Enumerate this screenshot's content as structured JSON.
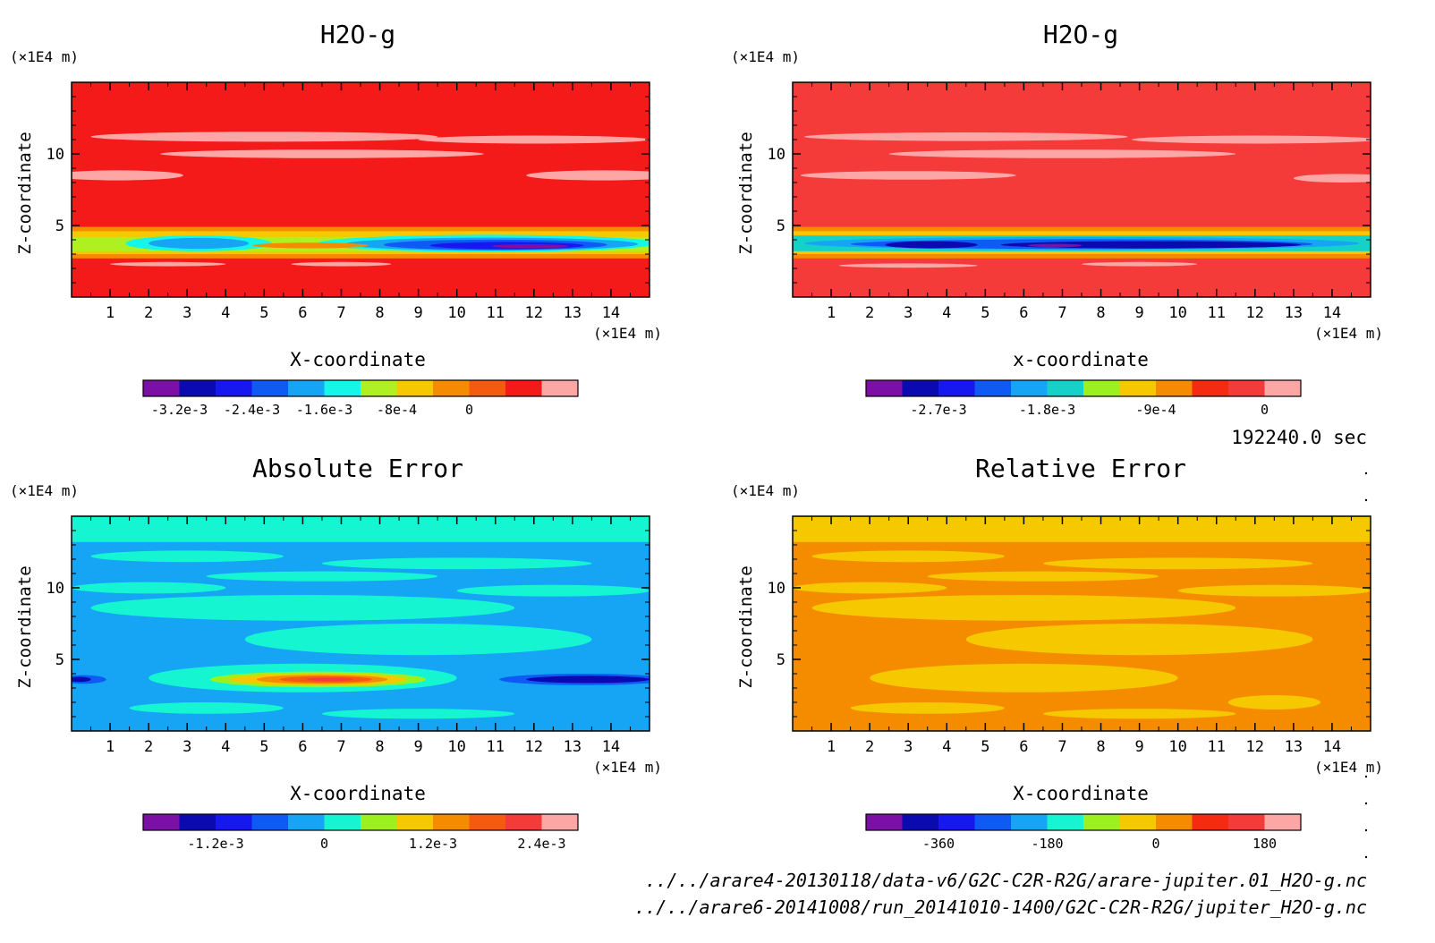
{
  "chart_data": [
    {
      "type": "heatmap",
      "title": "H2O-g",
      "xlabel": "X-coordinate",
      "ylabel": "Z-coordinate",
      "x_unit": "(×1E4 m)",
      "y_unit": "(×1E4 m)",
      "xlim": [
        0,
        15
      ],
      "ylim": [
        0,
        15
      ],
      "x_ticks": [
        "1",
        "2",
        "3",
        "4",
        "5",
        "6",
        "7",
        "8",
        "9",
        "10",
        "11",
        "12",
        "13",
        "14"
      ],
      "y_ticks": [
        "5",
        "10"
      ],
      "colorbar": {
        "colors": [
          "#7b0fa6",
          "#0a0ab0",
          "#1717f0",
          "#0f5af5",
          "#16a5f5",
          "#15f5e8",
          "#b0f020",
          "#f5c800",
          "#f58c00",
          "#f55a10",
          "#f51a1a",
          "#fda6a6"
        ],
        "tick_labels": [
          "-3.2e-3",
          "-2.4e-3",
          "-1.6e-3",
          "-8e-4",
          "0"
        ],
        "tick_positions": [
          1,
          3,
          5,
          7,
          9
        ]
      },
      "background": "#f51a1a",
      "features": [
        {
          "shape": "band",
          "z": [
            2.7,
            4.9
          ],
          "color": "#f58c00"
        },
        {
          "shape": "band",
          "z": [
            3.0,
            4.6
          ],
          "color": "#f5c800"
        },
        {
          "shape": "band",
          "z": [
            3.2,
            4.2
          ],
          "color": "#b0f020"
        },
        {
          "shape": "ellipse",
          "cx": 3.3,
          "cz": 3.75,
          "rx": 1.9,
          "rz": 0.55,
          "color": "#15f5e8"
        },
        {
          "shape": "ellipse",
          "cx": 10.8,
          "cz": 3.75,
          "rx": 4.4,
          "rz": 0.6,
          "color": "#15f5e8"
        },
        {
          "shape": "ellipse",
          "cx": 3.3,
          "cz": 3.75,
          "rx": 1.3,
          "rz": 0.38,
          "color": "#16a5f5"
        },
        {
          "shape": "ellipse",
          "cx": 10.9,
          "cz": 3.7,
          "rx": 3.8,
          "rz": 0.45,
          "color": "#16a5f5"
        },
        {
          "shape": "ellipse",
          "cx": 11.0,
          "cz": 3.65,
          "rx": 2.9,
          "rz": 0.36,
          "color": "#0f5af5"
        },
        {
          "shape": "ellipse",
          "cx": 11.3,
          "cz": 3.6,
          "rx": 2.0,
          "rz": 0.25,
          "color": "#1717f0"
        },
        {
          "shape": "ellipse",
          "cx": 11.9,
          "cz": 3.55,
          "rx": 1.0,
          "rz": 0.14,
          "color": "#7b0fa6"
        },
        {
          "shape": "ellipse",
          "cx": 6.2,
          "cz": 3.6,
          "rx": 1.5,
          "rz": 0.2,
          "color": "#f58c00"
        },
        {
          "shape": "ellipse",
          "cx": 5.0,
          "cz": 11.2,
          "rx": 4.5,
          "rz": 0.35,
          "color": "#fda6a6"
        },
        {
          "shape": "ellipse",
          "cx": 12.0,
          "cz": 11.0,
          "rx": 3.0,
          "rz": 0.28,
          "color": "#fda6a6"
        },
        {
          "shape": "ellipse",
          "cx": 6.5,
          "cz": 10.0,
          "rx": 4.2,
          "rz": 0.3,
          "color": "#fda6a6"
        },
        {
          "shape": "ellipse",
          "cx": 1.2,
          "cz": 8.5,
          "rx": 1.7,
          "rz": 0.35,
          "color": "#fda6a6"
        },
        {
          "shape": "ellipse",
          "cx": 13.8,
          "cz": 8.5,
          "rx": 2.0,
          "rz": 0.35,
          "color": "#fda6a6"
        },
        {
          "shape": "ellipse",
          "cx": 2.5,
          "cz": 2.3,
          "rx": 1.5,
          "rz": 0.15,
          "color": "#fda6a6"
        },
        {
          "shape": "ellipse",
          "cx": 7.0,
          "cz": 2.3,
          "rx": 1.3,
          "rz": 0.15,
          "color": "#fda6a6"
        }
      ]
    },
    {
      "type": "heatmap",
      "title": "H2O-g",
      "xlabel": "x-coordinate",
      "ylabel": "Z-coordinate",
      "x_unit": "(×1E4 m)",
      "y_unit": "(×1E4 m)",
      "xlim": [
        0,
        15
      ],
      "ylim": [
        0,
        15
      ],
      "x_ticks": [
        "1",
        "2",
        "3",
        "4",
        "5",
        "6",
        "7",
        "8",
        "9",
        "10",
        "11",
        "12",
        "13",
        "14"
      ],
      "y_ticks": [
        "5",
        "10"
      ],
      "colorbar": {
        "colors": [
          "#7b0fa6",
          "#0a0ab0",
          "#1717f0",
          "#0f5af5",
          "#16a5f5",
          "#15d2c8",
          "#9cf01e",
          "#f5c800",
          "#f58c00",
          "#f52a10",
          "#f53a3a",
          "#fda6a6"
        ],
        "tick_labels": [
          "-2.7e-3",
          "-1.8e-3",
          "-9e-4",
          "0"
        ],
        "tick_positions": [
          2,
          5,
          8,
          11
        ]
      },
      "background": "#f53a3a",
      "features": [
        {
          "shape": "band",
          "z": [
            2.7,
            4.9
          ],
          "color": "#f58c00"
        },
        {
          "shape": "band",
          "z": [
            3.0,
            4.6
          ],
          "color": "#f5c800"
        },
        {
          "shape": "band",
          "z": [
            3.2,
            4.3
          ],
          "color": "#15d2c8"
        },
        {
          "shape": "ellipse",
          "cx": 7.5,
          "cz": 3.75,
          "rx": 7.2,
          "rz": 0.45,
          "color": "#16a5f5"
        },
        {
          "shape": "ellipse",
          "cx": 7.5,
          "cz": 3.7,
          "rx": 6.0,
          "rz": 0.34,
          "color": "#0f5af5"
        },
        {
          "shape": "ellipse",
          "cx": 3.6,
          "cz": 3.65,
          "rx": 1.2,
          "rz": 0.25,
          "color": "#0a0ab0"
        },
        {
          "shape": "ellipse",
          "cx": 9.3,
          "cz": 3.65,
          "rx": 3.9,
          "rz": 0.25,
          "color": "#0a0ab0"
        },
        {
          "shape": "ellipse",
          "cx": 6.8,
          "cz": 3.6,
          "rx": 0.7,
          "rz": 0.12,
          "color": "#7b0fa6"
        },
        {
          "shape": "ellipse",
          "cx": 4.5,
          "cz": 11.2,
          "rx": 4.2,
          "rz": 0.3,
          "color": "#fda6a6"
        },
        {
          "shape": "ellipse",
          "cx": 12.0,
          "cz": 11.0,
          "rx": 3.2,
          "rz": 0.28,
          "color": "#fda6a6"
        },
        {
          "shape": "ellipse",
          "cx": 7.0,
          "cz": 10.0,
          "rx": 4.5,
          "rz": 0.3,
          "color": "#fda6a6"
        },
        {
          "shape": "ellipse",
          "cx": 3.0,
          "cz": 8.5,
          "rx": 2.8,
          "rz": 0.3,
          "color": "#fda6a6"
        },
        {
          "shape": "ellipse",
          "cx": 14.3,
          "cz": 8.3,
          "rx": 1.3,
          "rz": 0.3,
          "color": "#fda6a6"
        },
        {
          "shape": "ellipse",
          "cx": 3.0,
          "cz": 2.2,
          "rx": 1.8,
          "rz": 0.15,
          "color": "#fda6a6"
        },
        {
          "shape": "ellipse",
          "cx": 9.0,
          "cz": 2.3,
          "rx": 1.5,
          "rz": 0.15,
          "color": "#fda6a6"
        }
      ]
    },
    {
      "type": "heatmap",
      "title": "Absolute Error",
      "xlabel": "X-coordinate",
      "ylabel": "Z-coordinate",
      "x_unit": "(×1E4 m)",
      "y_unit": "(×1E4 m)",
      "xlim": [
        0,
        15
      ],
      "ylim": [
        0,
        15
      ],
      "x_ticks": [
        "1",
        "2",
        "3",
        "4",
        "5",
        "6",
        "7",
        "8",
        "9",
        "10",
        "11",
        "12",
        "13",
        "14"
      ],
      "y_ticks": [
        "5",
        "10"
      ],
      "colorbar": {
        "colors": [
          "#7b0fa6",
          "#0a0ab0",
          "#1717f0",
          "#0f5af5",
          "#16a5f5",
          "#15f5d2",
          "#9cf01e",
          "#f5c800",
          "#f58c00",
          "#f55a10",
          "#f53a3a",
          "#fda6a6"
        ],
        "tick_labels": [
          "-1.2e-3",
          "0",
          "1.2e-3",
          "2.4e-3"
        ],
        "tick_positions": [
          2,
          5,
          8,
          11
        ]
      },
      "background": "#16a5f5",
      "features": [
        {
          "shape": "band",
          "z": [
            13.2,
            15
          ],
          "color": "#15f5d2"
        },
        {
          "shape": "ellipse",
          "cx": 3.0,
          "cz": 12.2,
          "rx": 2.5,
          "rz": 0.4,
          "color": "#15f5d2"
        },
        {
          "shape": "ellipse",
          "cx": 10.0,
          "cz": 11.7,
          "rx": 3.5,
          "rz": 0.4,
          "color": "#15f5d2"
        },
        {
          "shape": "ellipse",
          "cx": 6.5,
          "cz": 10.8,
          "rx": 3.0,
          "rz": 0.35,
          "color": "#15f5d2"
        },
        {
          "shape": "ellipse",
          "cx": 2.0,
          "cz": 10.0,
          "rx": 2.0,
          "rz": 0.4,
          "color": "#15f5d2"
        },
        {
          "shape": "ellipse",
          "cx": 12.5,
          "cz": 9.8,
          "rx": 2.5,
          "rz": 0.4,
          "color": "#15f5d2"
        },
        {
          "shape": "ellipse",
          "cx": 6.0,
          "cz": 8.6,
          "rx": 5.5,
          "rz": 0.9,
          "color": "#15f5d2"
        },
        {
          "shape": "ellipse",
          "cx": 9.0,
          "cz": 6.4,
          "rx": 4.5,
          "rz": 1.1,
          "color": "#15f5d2"
        },
        {
          "shape": "ellipse",
          "cx": 6.0,
          "cz": 3.7,
          "rx": 4.0,
          "rz": 1.0,
          "color": "#15f5d2"
        },
        {
          "shape": "ellipse",
          "cx": 3.5,
          "cz": 1.6,
          "rx": 2.0,
          "rz": 0.4,
          "color": "#15f5d2"
        },
        {
          "shape": "ellipse",
          "cx": 9.0,
          "cz": 1.2,
          "rx": 2.5,
          "rz": 0.35,
          "color": "#15f5d2"
        },
        {
          "shape": "ellipse",
          "cx": 6.4,
          "cz": 3.6,
          "rx": 2.8,
          "rz": 0.55,
          "color": "#9cf01e"
        },
        {
          "shape": "ellipse",
          "cx": 6.4,
          "cz": 3.6,
          "rx": 2.3,
          "rz": 0.42,
          "color": "#f5c800"
        },
        {
          "shape": "ellipse",
          "cx": 6.5,
          "cz": 3.6,
          "rx": 1.7,
          "rz": 0.32,
          "color": "#f58c00"
        },
        {
          "shape": "ellipse",
          "cx": 6.6,
          "cz": 3.6,
          "rx": 1.2,
          "rz": 0.22,
          "color": "#f55a10"
        },
        {
          "shape": "ellipse",
          "cx": 6.7,
          "cz": 3.6,
          "rx": 0.6,
          "rz": 0.12,
          "color": "#f53a3a"
        },
        {
          "shape": "ellipse",
          "cx": 13.3,
          "cz": 3.6,
          "rx": 2.2,
          "rz": 0.4,
          "color": "#0f5af5"
        },
        {
          "shape": "ellipse",
          "cx": 13.4,
          "cz": 3.6,
          "rx": 1.6,
          "rz": 0.25,
          "color": "#0a0ab0"
        },
        {
          "shape": "ellipse",
          "cx": 0.3,
          "cz": 3.6,
          "rx": 0.6,
          "rz": 0.3,
          "color": "#0f5af5"
        },
        {
          "shape": "ellipse",
          "cx": 0.2,
          "cz": 3.6,
          "rx": 0.3,
          "rz": 0.18,
          "color": "#0a0ab0"
        }
      ]
    },
    {
      "type": "heatmap",
      "title": "Relative Error",
      "xlabel": "X-coordinate",
      "ylabel": "Z-coordinate",
      "x_unit": "(×1E4 m)",
      "y_unit": "(×1E4 m)",
      "xlim": [
        0,
        15
      ],
      "ylim": [
        0,
        15
      ],
      "x_ticks": [
        "1",
        "2",
        "3",
        "4",
        "5",
        "6",
        "7",
        "8",
        "9",
        "10",
        "11",
        "12",
        "13",
        "14"
      ],
      "y_ticks": [
        "5",
        "10"
      ],
      "colorbar": {
        "colors": [
          "#7b0fa6",
          "#0a0ab0",
          "#1717f0",
          "#0f5af5",
          "#16a5f5",
          "#15f5d2",
          "#9cf01e",
          "#f5c800",
          "#f58c00",
          "#f52a10",
          "#f53a3a",
          "#fda6a6"
        ],
        "tick_labels": [
          "-360",
          "-180",
          "0",
          "180"
        ],
        "tick_positions": [
          2,
          5,
          8,
          11
        ]
      },
      "background": "#f58c00",
      "features": [
        {
          "shape": "band",
          "z": [
            13.2,
            15
          ],
          "color": "#f5c800"
        },
        {
          "shape": "ellipse",
          "cx": 3.0,
          "cz": 12.2,
          "rx": 2.5,
          "rz": 0.4,
          "color": "#f5c800"
        },
        {
          "shape": "ellipse",
          "cx": 10.0,
          "cz": 11.7,
          "rx": 3.5,
          "rz": 0.4,
          "color": "#f5c800"
        },
        {
          "shape": "ellipse",
          "cx": 6.5,
          "cz": 10.8,
          "rx": 3.0,
          "rz": 0.35,
          "color": "#f5c800"
        },
        {
          "shape": "ellipse",
          "cx": 2.0,
          "cz": 10.0,
          "rx": 2.0,
          "rz": 0.4,
          "color": "#f5c800"
        },
        {
          "shape": "ellipse",
          "cx": 12.5,
          "cz": 9.8,
          "rx": 2.5,
          "rz": 0.4,
          "color": "#f5c800"
        },
        {
          "shape": "ellipse",
          "cx": 6.0,
          "cz": 8.6,
          "rx": 5.5,
          "rz": 0.9,
          "color": "#f5c800"
        },
        {
          "shape": "ellipse",
          "cx": 9.0,
          "cz": 6.4,
          "rx": 4.5,
          "rz": 1.1,
          "color": "#f5c800"
        },
        {
          "shape": "ellipse",
          "cx": 6.0,
          "cz": 3.7,
          "rx": 4.0,
          "rz": 1.0,
          "color": "#f5c800"
        },
        {
          "shape": "ellipse",
          "cx": 3.5,
          "cz": 1.6,
          "rx": 2.0,
          "rz": 0.4,
          "color": "#f5c800"
        },
        {
          "shape": "ellipse",
          "cx": 9.0,
          "cz": 1.2,
          "rx": 2.5,
          "rz": 0.35,
          "color": "#f5c800"
        },
        {
          "shape": "ellipse",
          "cx": 12.5,
          "cz": 2.0,
          "rx": 1.2,
          "rz": 0.5,
          "color": "#f5c800"
        }
      ]
    }
  ],
  "annotations": {
    "time": "192240.0 sec",
    "file_1": "../../arare4-20130118/data-v6/G2C-C2R-R2G/arare-jupiter.01_H2O-g.nc",
    "file_2": "../../arare6-20141008/run_20141010-1400/G2C-C2R-R2G/jupiter_H2O-g.nc"
  }
}
